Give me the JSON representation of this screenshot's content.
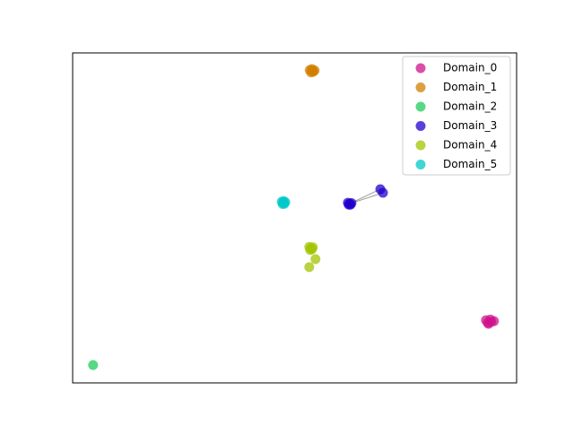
{
  "chart_data": {
    "type": "scatter",
    "xlim": [
      0,
      100
    ],
    "ylim": [
      0,
      100
    ],
    "legend": "upper right",
    "alpha": 0.75,
    "series": [
      {
        "name": "Domain_0",
        "color": "#d0128c",
        "x": [
          93.1,
          94.3,
          93.7,
          94.9,
          93.5,
          94.1
        ],
        "values": [
          19.0,
          18.5,
          17.9,
          18.7,
          18.2,
          19.2
        ]
      },
      {
        "name": "Domain_1",
        "color": "#d27f00",
        "x": [
          53.4,
          54.2,
          53.7,
          54.5,
          53.9,
          54.1
        ],
        "values": [
          94.8,
          94.3,
          94.1,
          94.7,
          95.1,
          94.5
        ]
      },
      {
        "name": "Domain_2",
        "color": "#1fcc5a",
        "x": [
          4.6
        ],
        "values": [
          5.4
        ]
      },
      {
        "name": "Domain_3",
        "color": "#2200cc",
        "x": [
          62.4,
          62.0,
          62.8,
          62.2,
          62.6,
          69.3,
          69.9
        ],
        "values": [
          54.3,
          54.6,
          54.5,
          54.0,
          54.0,
          58.7,
          57.6
        ]
      },
      {
        "name": "Domain_4",
        "color": "#a3c400",
        "x": [
          53.7,
          53.3,
          54.1,
          53.5,
          53.9,
          54.7,
          53.3
        ],
        "values": [
          40.8,
          41.2,
          41.1,
          40.3,
          40.5,
          37.5,
          35.1
        ]
      },
      {
        "name": "Domain_5",
        "color": "#00c8c8",
        "x": [
          47.5,
          47.1,
          47.9,
          47.3,
          47.7,
          47.5
        ],
        "values": [
          54.6,
          54.9,
          54.8,
          54.2,
          54.3,
          55.1
        ]
      }
    ]
  }
}
